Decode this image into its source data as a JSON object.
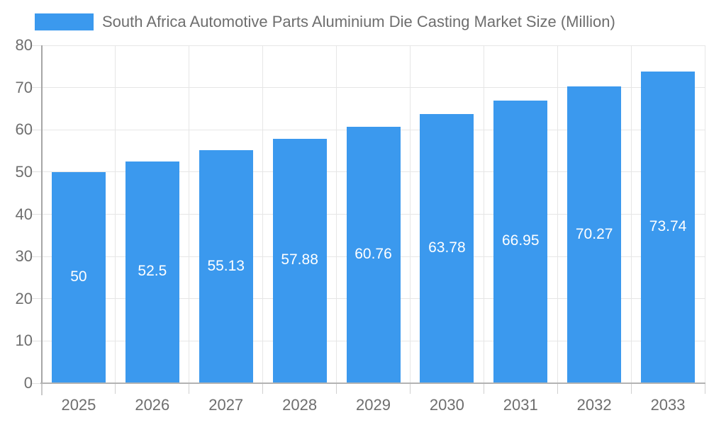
{
  "chart": {
    "legend_label": "South Africa Automotive Parts Aluminium Die Casting Market Size (Million)"
  },
  "chart_data": {
    "type": "bar",
    "title": "South Africa Automotive Parts Aluminium Die Casting Market Size (Million)",
    "categories": [
      "2025",
      "2026",
      "2027",
      "2028",
      "2029",
      "2030",
      "2031",
      "2032",
      "2033"
    ],
    "values": [
      50,
      52.5,
      55.13,
      57.88,
      60.76,
      63.78,
      66.95,
      70.27,
      73.74
    ],
    "value_labels": [
      "50",
      "52.5",
      "55.13",
      "57.88",
      "60.76",
      "63.78",
      "66.95",
      "70.27",
      "73.74"
    ],
    "xlabel": "",
    "ylabel": "",
    "ylim": [
      0,
      80
    ],
    "yticks": [
      0,
      10,
      20,
      30,
      40,
      50,
      60,
      70,
      80
    ],
    "grid": true,
    "legend_position": "top-left",
    "bar_label_position": "inside-middle",
    "colors": {
      "bar": "#3B99EE",
      "grid": "#e6e6e6",
      "axis": "#b3b3b3",
      "tick_label": "#6e6e6e",
      "bar_label": "#ffffff",
      "background": "#ffffff"
    }
  }
}
